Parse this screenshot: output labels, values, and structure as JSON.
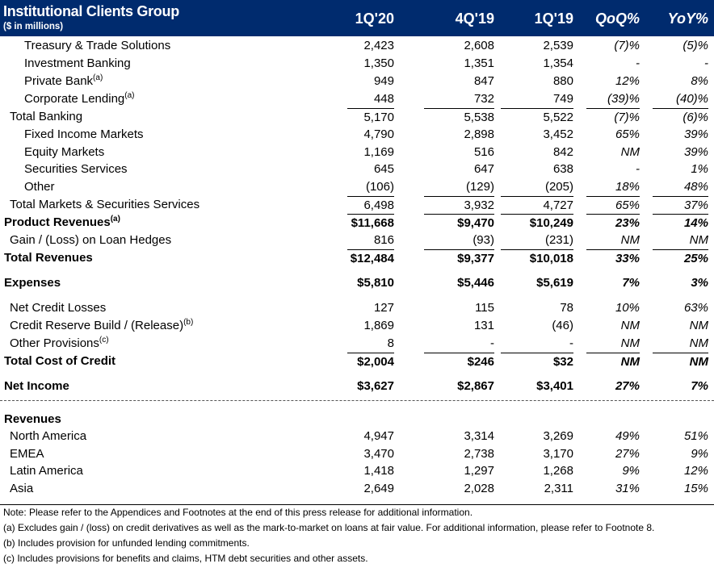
{
  "header": {
    "title": "Institutional Clients Group",
    "subtitle": "($ in millions)",
    "columns": [
      "1Q'20",
      "4Q'19",
      "1Q'19",
      "QoQ%",
      "YoY%"
    ]
  },
  "rows": [
    {
      "label": "Treasury & Trade Solutions",
      "values": [
        "2,423",
        "2,608",
        "2,539",
        "(7)%",
        "(5)%"
      ],
      "indent": 2
    },
    {
      "label": "Investment Banking",
      "values": [
        "1,350",
        "1,351",
        "1,354",
        "-",
        "-"
      ],
      "indent": 2
    },
    {
      "label": "Private Bank",
      "sup": "(a)",
      "values": [
        "949",
        "847",
        "880",
        "12%",
        "8%"
      ],
      "indent": 2
    },
    {
      "label": "Corporate Lending",
      "sup": "(a)",
      "values": [
        "448",
        "732",
        "749",
        "(39)%",
        "(40)%"
      ],
      "indent": 2
    },
    {
      "label": "Total Banking",
      "values": [
        "5,170",
        "5,538",
        "5,522",
        "(7)%",
        "(6)%"
      ],
      "indent": 1,
      "line": true
    },
    {
      "label": "Fixed Income Markets",
      "values": [
        "4,790",
        "2,898",
        "3,452",
        "65%",
        "39%"
      ],
      "indent": 2
    },
    {
      "label": "Equity Markets",
      "values": [
        "1,169",
        "516",
        "842",
        "NM",
        "39%"
      ],
      "indent": 2
    },
    {
      "label": "Securities Services",
      "values": [
        "645",
        "647",
        "638",
        "-",
        "1%"
      ],
      "indent": 2
    },
    {
      "label": "Other",
      "values": [
        "(106)",
        "(129)",
        "(205)",
        "18%",
        "48%"
      ],
      "indent": 2
    },
    {
      "label": "Total Markets & Securities Services",
      "values": [
        "6,498",
        "3,932",
        "4,727",
        "65%",
        "37%"
      ],
      "indent": 1,
      "line": true
    },
    {
      "label": "Product Revenues",
      "sup": "(a)",
      "values": [
        "$11,668",
        "$9,470",
        "$10,249",
        "23%",
        "14%"
      ],
      "indent": 0,
      "bold": true,
      "line": true
    },
    {
      "label": "Gain / (Loss) on Loan Hedges",
      "values": [
        "816",
        "(93)",
        "(231)",
        "NM",
        "NM"
      ],
      "indent": 1
    },
    {
      "label": "Total Revenues",
      "values": [
        "$12,484",
        "$9,377",
        "$10,018",
        "33%",
        "25%"
      ],
      "indent": 0,
      "bold": true,
      "line": true
    },
    {
      "label": "Expenses",
      "values": [
        "$5,810",
        "$5,446",
        "$5,619",
        "7%",
        "3%"
      ],
      "indent": 0,
      "bold": true
    },
    {
      "label": "Net Credit Losses",
      "values": [
        "127",
        "115",
        "78",
        "10%",
        "63%"
      ],
      "indent": 1
    },
    {
      "label": "Credit Reserve Build / (Release)",
      "sup": "(b)",
      "values": [
        "1,869",
        "131",
        "(46)",
        "NM",
        "NM"
      ],
      "indent": 1
    },
    {
      "label": "Other Provisions",
      "sup": "(c)",
      "values": [
        "8",
        "-",
        "-",
        "NM",
        "NM"
      ],
      "indent": 1
    },
    {
      "label": "Total Cost of Credit",
      "values": [
        "$2,004",
        "$246",
        "$32",
        "NM",
        "NM"
      ],
      "indent": 0,
      "bold": true,
      "line": true
    },
    {
      "label": "Net Income",
      "values": [
        "$3,627",
        "$2,867",
        "$3,401",
        "27%",
        "7%"
      ],
      "indent": 0,
      "bold": true
    },
    {
      "label": "Revenues",
      "values": [
        "",
        "",
        "",
        "",
        ""
      ],
      "indent": 0,
      "bold": true
    },
    {
      "label": "North America",
      "values": [
        "4,947",
        "3,314",
        "3,269",
        "49%",
        "51%"
      ],
      "indent": 1
    },
    {
      "label": "EMEA",
      "values": [
        "3,470",
        "2,738",
        "3,170",
        "27%",
        "9%"
      ],
      "indent": 1
    },
    {
      "label": "Latin America",
      "values": [
        "1,418",
        "1,297",
        "1,268",
        "9%",
        "12%"
      ],
      "indent": 1
    },
    {
      "label": "Asia",
      "values": [
        "2,649",
        "2,028",
        "2,311",
        "31%",
        "15%"
      ],
      "indent": 1
    }
  ],
  "notes": [
    "Note:  Please refer to the Appendices and Footnotes at the end of this press release for additional information.",
    "(a) Excludes gain / (loss) on credit derivatives as well as the mark-to-market on loans at fair value. For additional information, please refer to Footnote 8.",
    "(b) Includes provision for unfunded lending commitments.",
    "(c) Includes provisions for benefits and claims, HTM debt securities and other assets."
  ]
}
